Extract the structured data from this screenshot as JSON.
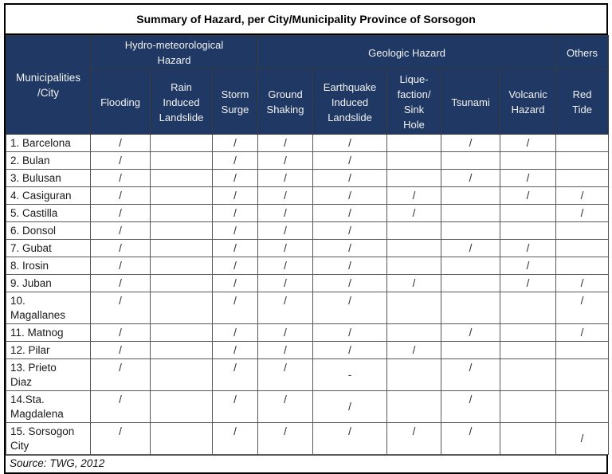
{
  "title": "Summary of Hazard, per City/Municipality Province of Sorsogon",
  "header": {
    "municipality_col": "Municipalities\n/City",
    "groups": [
      {
        "label": "Hydro-meteorological\nHazard",
        "span": 3
      },
      {
        "label": "Geologic Hazard",
        "span": 5
      },
      {
        "label": "Others",
        "span": 1
      }
    ],
    "columns": [
      "Flooding",
      "Rain\nInduced\nLandslide",
      "Storm\nSurge",
      "Ground\nShaking",
      "Earthquake\nInduced\nLandslide",
      "Lique-\nfaction/\nSink\nHole",
      "Tsunami",
      "Volcanic\nHazard",
      "Red\nTide"
    ]
  },
  "mark": "/",
  "rows": [
    {
      "label": "1. Barcelona",
      "cells": [
        "/",
        "",
        "/",
        "/",
        "/",
        "",
        "/",
        "/",
        ""
      ]
    },
    {
      "label": "2. Bulan",
      "cells": [
        "/",
        "",
        "/",
        "/",
        "/",
        "",
        "",
        "",
        ""
      ]
    },
    {
      "label": "3. Bulusan",
      "cells": [
        "/",
        "",
        "/",
        "/",
        "/",
        "",
        "/",
        "/",
        ""
      ]
    },
    {
      "label": "4. Casiguran",
      "cells": [
        "/",
        "",
        "/",
        "/",
        "/",
        "/",
        "",
        "/",
        "/"
      ]
    },
    {
      "label": "5. Castilla",
      "cells": [
        "/",
        "",
        "/",
        "/",
        "/",
        "/",
        "",
        "",
        "/"
      ]
    },
    {
      "label": "6. Donsol",
      "cells": [
        "/",
        "",
        "/",
        "/",
        "/",
        "",
        "",
        "",
        ""
      ]
    },
    {
      "label": "7. Gubat",
      "cells": [
        "/",
        "",
        "/",
        "/",
        "/",
        "",
        "/",
        "/",
        ""
      ]
    },
    {
      "label": "8. Irosin",
      "cells": [
        "/",
        "",
        "/",
        "/",
        "/",
        "",
        "",
        "/",
        ""
      ]
    },
    {
      "label": "9. Juban",
      "cells": [
        "/",
        "",
        "/",
        "/",
        "/",
        "/",
        "",
        "/",
        "/"
      ]
    },
    {
      "label": "10.\nMagallanes",
      "cells": [
        "/",
        "",
        "/",
        "/",
        "/",
        "",
        "",
        "",
        "/"
      ]
    },
    {
      "label": "11. Matnog",
      "cells": [
        "/",
        "",
        "/",
        "/",
        "/",
        "",
        "/",
        "",
        "/"
      ]
    },
    {
      "label": "12. Pilar",
      "cells": [
        "/",
        "",
        "/",
        "/",
        "/",
        "/",
        "",
        "",
        ""
      ]
    },
    {
      "label": "13. Prieto\nDiaz",
      "cells": [
        "/",
        "",
        "/",
        "/",
        "-",
        "",
        "/",
        "",
        ""
      ],
      "mid": [
        4
      ]
    },
    {
      "label": "14.Sta.\nMagdalena",
      "cells": [
        "/",
        "",
        "/",
        "/",
        "/",
        "",
        "/",
        "",
        ""
      ],
      "mid": [
        4
      ]
    },
    {
      "label": "15. Sorsogon\nCity",
      "cells": [
        "/",
        "",
        "/",
        "/",
        "/",
        "/",
        "/",
        "",
        "/"
      ],
      "mid": [
        8
      ]
    }
  ],
  "footer": {
    "source": "Source: TWG, 2012"
  },
  "colors": {
    "header_bg": "#1f3864",
    "header_text": "#f2f2f2",
    "grid_line": "#595959",
    "outer_border": "#000000",
    "mark_color": "#2e2e2e"
  }
}
